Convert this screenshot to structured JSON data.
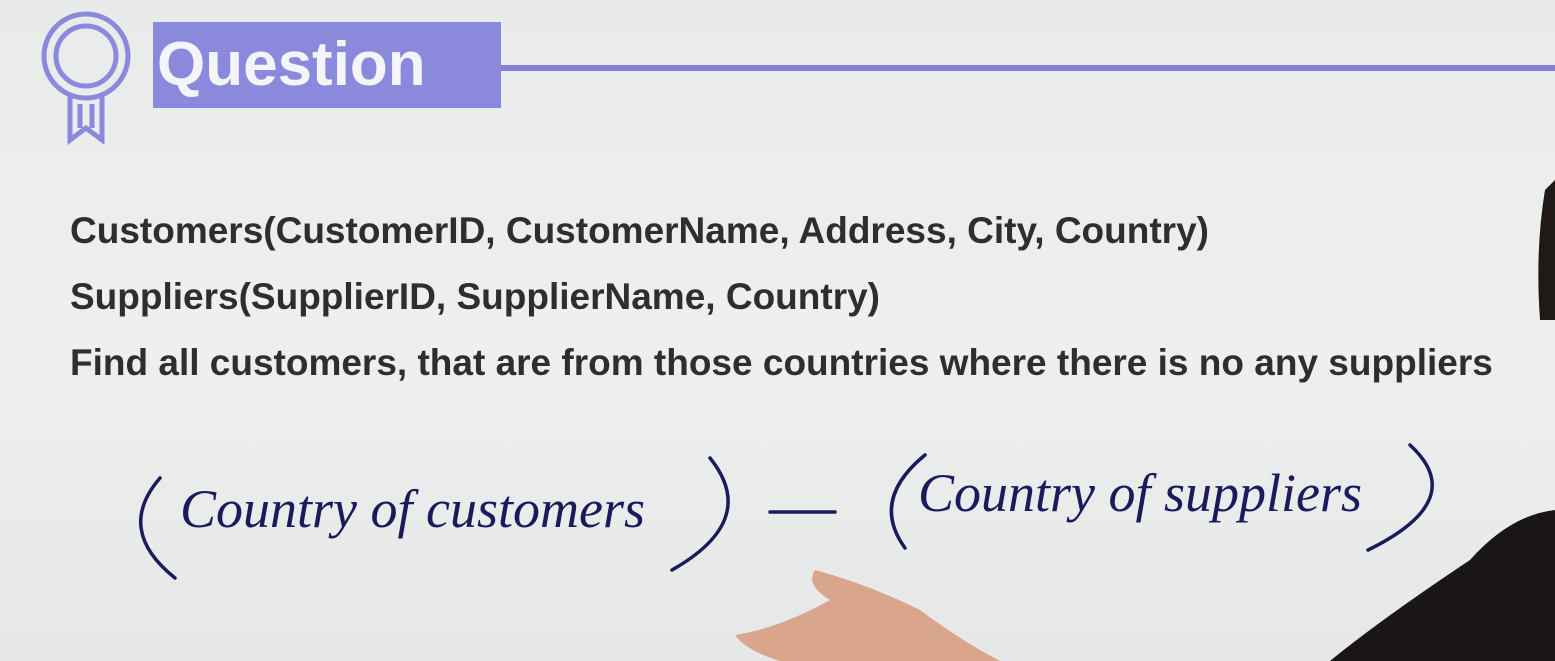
{
  "header": {
    "title": "Question"
  },
  "schema": [
    "Customers(CustomerID, CustomerName, Address, City, Country)",
    "Suppliers(SupplierID, SupplierName, Country)"
  ],
  "question": "Find all customers, that are from those countries where there is no any suppliers",
  "handwriting": {
    "left": "Country of customers",
    "right": "Country of suppliers"
  }
}
